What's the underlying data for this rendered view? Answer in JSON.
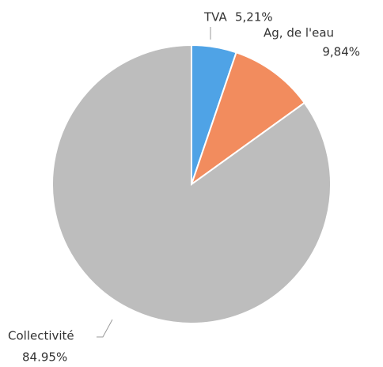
{
  "chart_data": {
    "type": "pie",
    "categories": [
      "TVA",
      "Ag, de l'eau",
      "Collectivité"
    ],
    "values": [
      5.21,
      9.84,
      84.95
    ],
    "value_labels": [
      "5,21%",
      "9,84%",
      "84.95%"
    ],
    "colors": [
      "#4fa3e6",
      "#f28c5e",
      "#bdbdbd"
    ]
  }
}
